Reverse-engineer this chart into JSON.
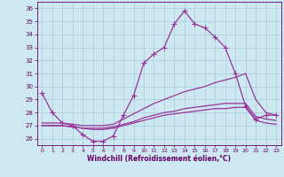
{
  "xlabel": "Windchill (Refroidissement éolien,°C)",
  "bg_color": "#cde8f0",
  "grid_color": "#aaccdd",
  "line_color": "#993399",
  "xlim": [
    -0.5,
    23.5
  ],
  "ylim": [
    25.5,
    36.5
  ],
  "yticks": [
    26,
    27,
    28,
    29,
    30,
    31,
    32,
    33,
    34,
    35,
    36
  ],
  "xticks": [
    0,
    1,
    2,
    3,
    4,
    5,
    6,
    7,
    8,
    9,
    10,
    11,
    12,
    13,
    14,
    15,
    16,
    17,
    18,
    19,
    20,
    21,
    22,
    23
  ],
  "lines": [
    {
      "x": [
        0,
        1,
        2,
        3,
        4,
        5,
        6,
        7,
        8,
        9,
        10,
        11,
        12,
        13,
        14,
        15,
        16,
        17,
        18,
        19,
        20,
        21,
        22,
        23
      ],
      "y": [
        29.5,
        28.0,
        27.2,
        27.0,
        26.3,
        25.8,
        25.8,
        26.2,
        27.8,
        29.3,
        31.8,
        32.5,
        33.0,
        34.8,
        35.8,
        34.8,
        34.5,
        33.8,
        33.0,
        31.0,
        28.5,
        27.5,
        27.8,
        27.8
      ],
      "marker": true
    },
    {
      "x": [
        0,
        1,
        2,
        3,
        4,
        5,
        6,
        7,
        8,
        9,
        10,
        11,
        12,
        13,
        14,
        15,
        16,
        17,
        18,
        19,
        20,
        21,
        22,
        23
      ],
      "y": [
        27.2,
        27.2,
        27.2,
        27.1,
        27.0,
        27.0,
        27.0,
        27.1,
        27.5,
        27.9,
        28.3,
        28.7,
        29.0,
        29.3,
        29.6,
        29.8,
        30.0,
        30.3,
        30.5,
        30.7,
        31.0,
        29.0,
        28.0,
        27.8
      ],
      "marker": false
    },
    {
      "x": [
        0,
        1,
        2,
        3,
        4,
        5,
        6,
        7,
        8,
        9,
        10,
        11,
        12,
        13,
        14,
        15,
        16,
        17,
        18,
        19,
        20,
        21,
        22,
        23
      ],
      "y": [
        27.0,
        27.0,
        27.0,
        26.9,
        26.8,
        26.8,
        26.8,
        26.9,
        27.1,
        27.3,
        27.6,
        27.8,
        28.0,
        28.1,
        28.3,
        28.4,
        28.5,
        28.6,
        28.7,
        28.7,
        28.7,
        27.7,
        27.5,
        27.4
      ],
      "marker": false
    },
    {
      "x": [
        0,
        1,
        2,
        3,
        4,
        5,
        6,
        7,
        8,
        9,
        10,
        11,
        12,
        13,
        14,
        15,
        16,
        17,
        18,
        19,
        20,
        21,
        22,
        23
      ],
      "y": [
        27.0,
        27.0,
        27.0,
        26.9,
        26.8,
        26.7,
        26.7,
        26.8,
        27.0,
        27.2,
        27.4,
        27.6,
        27.8,
        27.9,
        28.0,
        28.1,
        28.2,
        28.3,
        28.3,
        28.4,
        28.4,
        27.4,
        27.2,
        27.1
      ],
      "marker": false
    }
  ]
}
